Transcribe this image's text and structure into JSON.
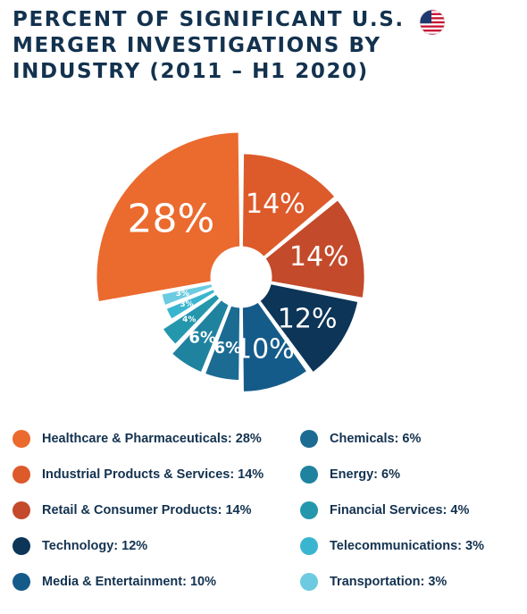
{
  "title": "PERCENT OF SIGNIFICANT U.S. MERGER INVESTIGATIONS BY INDUSTRY (2011 – H1 2020)",
  "flag_icon": "us-flag-icon",
  "colors": {
    "title": "#13324f",
    "flag_red": "#c8102e",
    "flag_blue": "#1f3a6e"
  },
  "chart_data": {
    "type": "pie",
    "subtype": "exploded donut",
    "title": "PERCENT OF SIGNIFICANT U.S. MERGER INVESTIGATIONS BY INDUSTRY (2011 – H1 2020)",
    "unit": "%",
    "legend_position": "bottom",
    "slices": [
      {
        "label": "Healthcare & Pharmaceuticals: 28%",
        "value": 28,
        "text": "28%",
        "color": "#eb6a2e"
      },
      {
        "label": "Industrial Products & Services: 14%",
        "value": 14,
        "text": "14%",
        "color": "#dd5a2b"
      },
      {
        "label": "Retail & Consumer Products: 14%",
        "value": 14,
        "text": "14%",
        "color": "#c34a2a"
      },
      {
        "label": "Technology: 12%",
        "value": 12,
        "text": "12%",
        "color": "#0c3558"
      },
      {
        "label": "Media & Entertainment: 10%",
        "value": 10,
        "text": "10%",
        "color": "#155b8a"
      },
      {
        "label": "Chemicals: 6%",
        "value": 6,
        "text": "6%",
        "color": "#1c6b93"
      },
      {
        "label": "Energy: 6%",
        "value": 6,
        "text": "6%",
        "color": "#1f829f"
      },
      {
        "label": "Financial Services: 4%",
        "value": 4,
        "text": "4%",
        "color": "#2497ad"
      },
      {
        "label": "Telecommunications: 3%",
        "value": 3,
        "text": "3%",
        "color": "#3ab5cf"
      },
      {
        "label": "Transportation: 3%",
        "value": 3,
        "text": "3%",
        "color": "#6ccbe0"
      }
    ]
  }
}
